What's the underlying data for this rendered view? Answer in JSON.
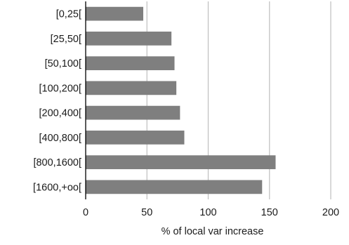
{
  "chart_data": {
    "type": "bar",
    "orientation": "horizontal",
    "title": "",
    "xlabel": "% of local var increase",
    "ylabel": "",
    "categories": [
      "[0,25[",
      "[25,50[",
      "[50,100[",
      "[100,200[",
      "[200,400[",
      "[400,800[",
      "[800,1600[",
      "[1600,+oo["
    ],
    "values": [
      47,
      70,
      72.5,
      74,
      77,
      80.5,
      155,
      144
    ],
    "xlim": [
      0,
      200
    ],
    "xticks": [
      0,
      50,
      100,
      150,
      200
    ],
    "grid": "vertical",
    "legend": "none",
    "colors": {
      "bar": "#7f7f7f",
      "grid": "#bfbfbf",
      "axis": "#000000"
    }
  }
}
